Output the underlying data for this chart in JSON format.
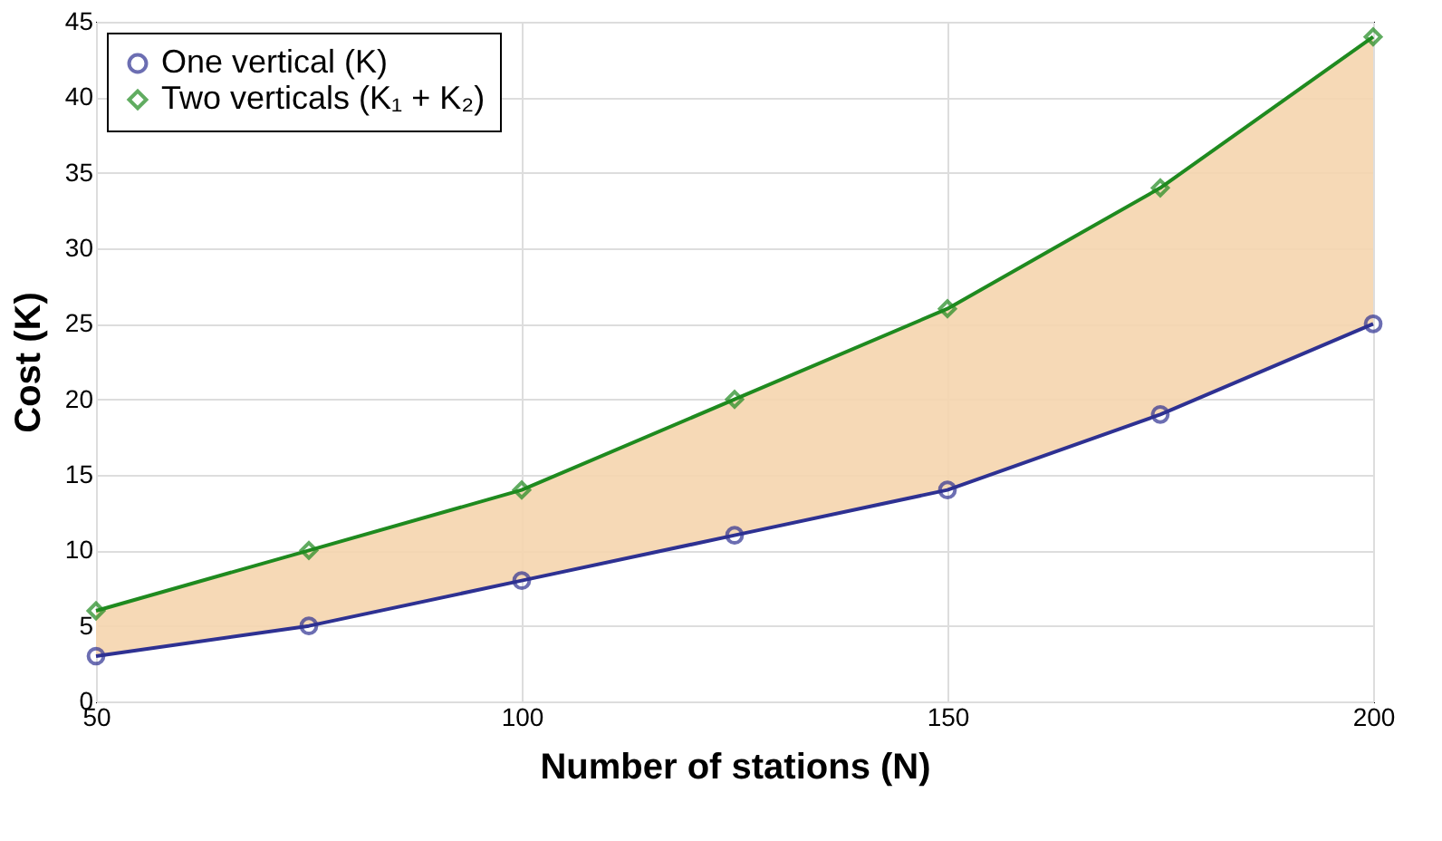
{
  "chart_data": {
    "type": "line",
    "xlabel": "Number of stations (N)",
    "ylabel": "Cost (K)",
    "x": [
      50,
      75,
      100,
      125,
      150,
      175,
      200
    ],
    "series": [
      {
        "name": "One vertical (K)",
        "color": "#2e3192",
        "marker": "circle",
        "values": [
          3,
          5,
          8,
          11,
          14,
          19,
          25
        ]
      },
      {
        "name": "Two verticals (K₁ + K₂)",
        "color": "#1f8a1f",
        "marker": "diamond",
        "values": [
          6,
          10,
          14,
          20,
          26,
          34,
          44
        ],
        "lower": [
          3,
          5,
          8,
          11,
          14,
          19,
          25
        ],
        "upper": [
          6,
          10,
          14,
          20,
          26,
          34,
          44
        ]
      }
    ],
    "xlim": [
      50,
      200
    ],
    "xticks": [
      50,
      100,
      150,
      200
    ],
    "ylim": [
      0,
      45
    ],
    "yticks": [
      0,
      5,
      10,
      15,
      20,
      25,
      30,
      35,
      40,
      45
    ],
    "grid": true,
    "legend": "top left",
    "line_style": "solid"
  }
}
